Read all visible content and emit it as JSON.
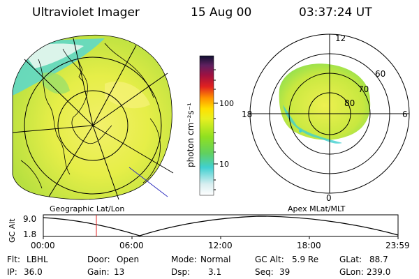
{
  "header": {
    "title": "Ultraviolet Imager",
    "date": "15 Aug 00",
    "time": "03:37:24 UT"
  },
  "colorbar": {
    "label": "photon cm⁻²s⁻¹",
    "ticks": [
      "100",
      "10"
    ]
  },
  "polar": {
    "mlt_labels": {
      "top": "12",
      "left": "18",
      "right": "6",
      "bottom": "0"
    },
    "lat_labels": [
      "60",
      "70",
      "80"
    ]
  },
  "panels": {
    "left_caption": "Geographic Lat/Lon",
    "right_caption": "Apex MLat/MLT"
  },
  "altitude_plot": {
    "ylabel": "GC Alt",
    "yticks": [
      "9.0",
      "1.8"
    ],
    "xticks": [
      "00:00",
      "06:00",
      "12:00",
      "18:00",
      "23:59"
    ],
    "current_time_marker": "03:37"
  },
  "status": {
    "flt_label": "Flt:",
    "flt_value": "LBHL",
    "ip_label": "IP:",
    "ip_value": "36.0",
    "door_label": "Door:",
    "door_value": "Open",
    "gain_label": "Gain:",
    "gain_value": "13",
    "mode_label": "Mode:",
    "mode_value": "Normal",
    "dsp_label": "Dsp:",
    "dsp_value": "3.1",
    "gcalt_label": "GC Alt:",
    "gcalt_value": "5.9 Re",
    "seq_label": "Seq:",
    "seq_value": "39",
    "glat_label": "GLat:",
    "glat_value": "88.7",
    "glon_label": "GLon:",
    "glon_value": "239.0"
  }
}
